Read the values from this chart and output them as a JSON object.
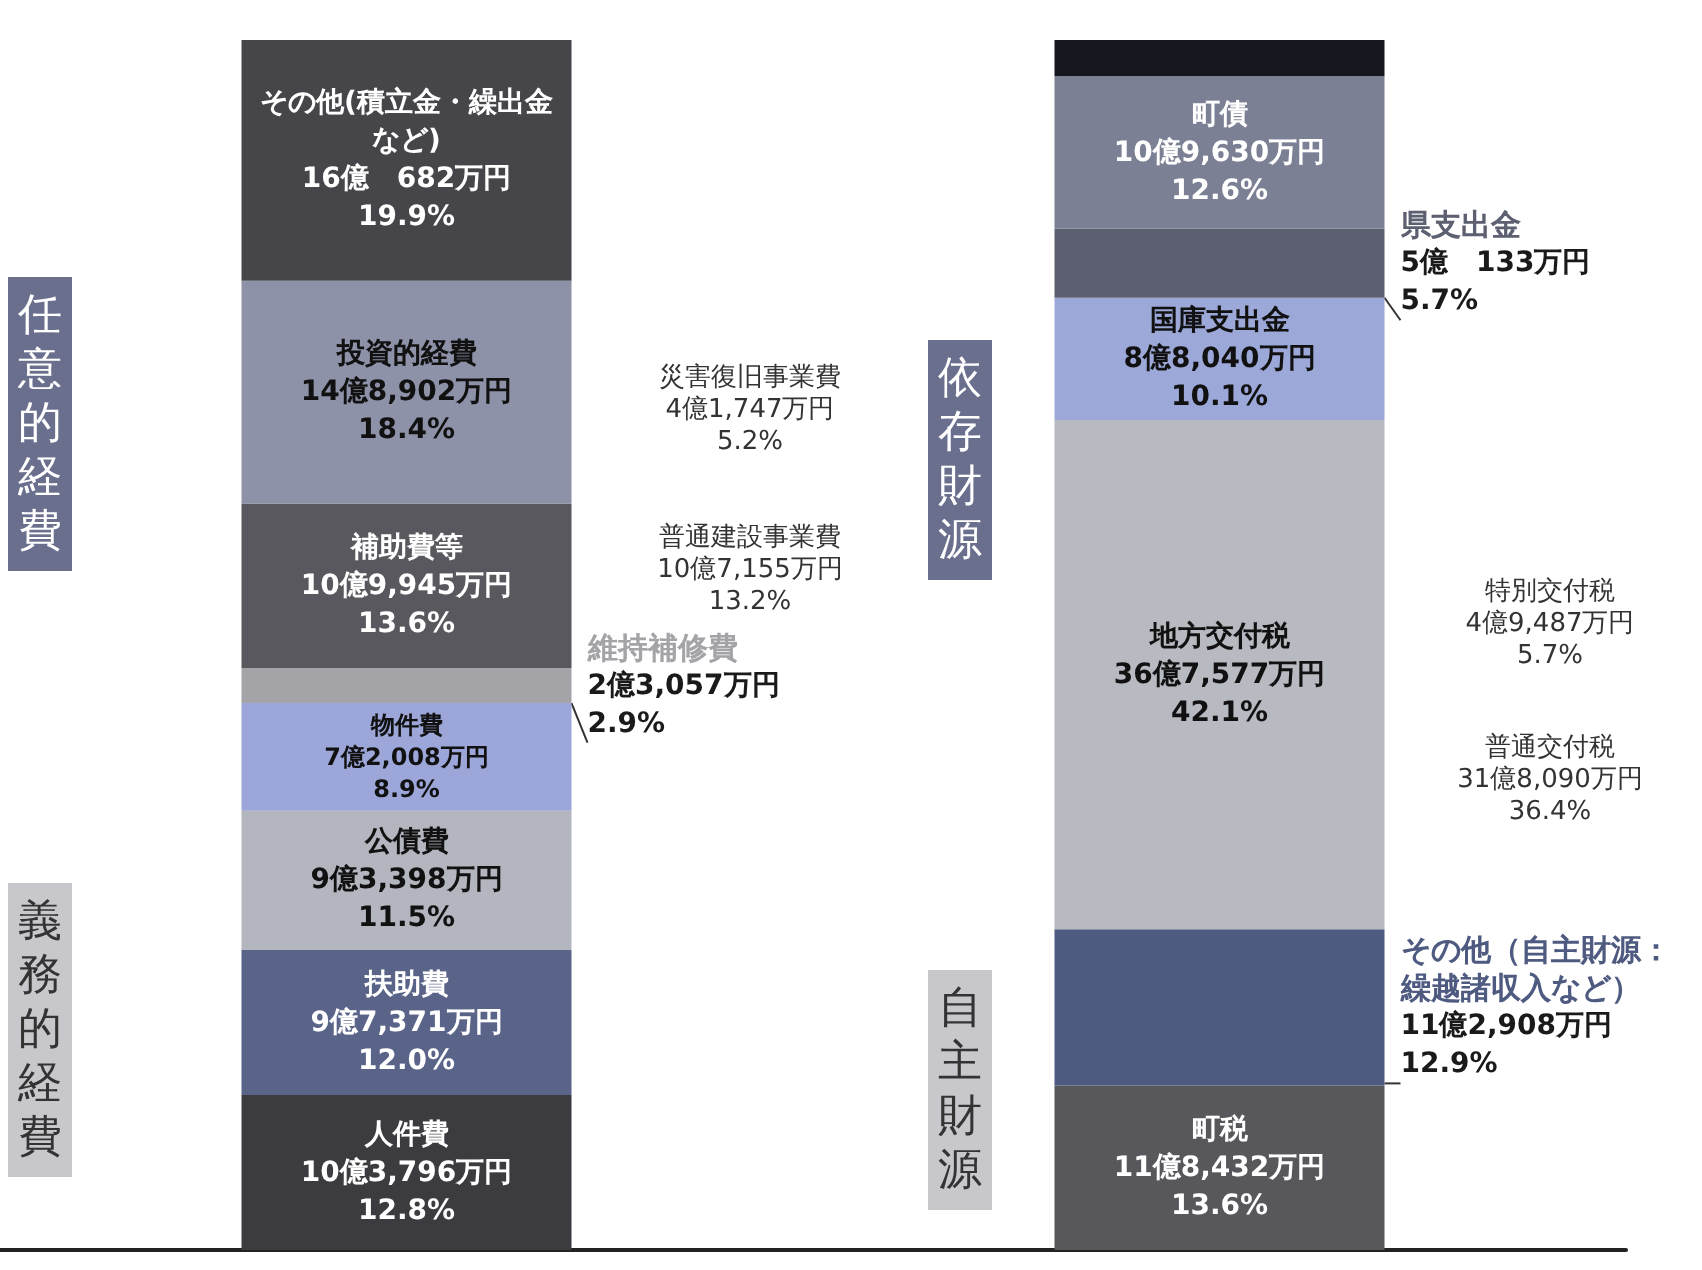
{
  "chart_data": {
    "type": "bar",
    "stacked": true,
    "categories": [
      null,
      null
    ],
    "series": [
      {
        "name": "人件費",
        "color": "#3c3c40",
        "values": [
          12.8,
          null
        ],
        "value_labels": [
          "10億3,796万円\n12.8%",
          null
        ]
      },
      {
        "name": "扶助費",
        "color": "#5a6488",
        "values": [
          12.0,
          null
        ],
        "value_labels": [
          "9億7,371万円\n12.0%",
          null
        ]
      },
      {
        "name": "公債費",
        "color": "#b3b5bf",
        "values": [
          11.5,
          null
        ],
        "value_labels": [
          "9億3,398万円\n11.5%",
          null
        ]
      },
      {
        "name": "物件費",
        "color": "#9ca6d8",
        "values": [
          8.9,
          null
        ],
        "value_labels": [
          "7億2,008万円\n8.9%",
          null
        ]
      },
      {
        "name": "維持補修費",
        "color": "#a4a4a8",
        "values": [
          2.9,
          null
        ],
        "value_labels": [
          "2億3,057万円\n2.9%",
          null
        ]
      },
      {
        "name": "補助費等",
        "color": "#58585e",
        "values": [
          13.6,
          null
        ],
        "value_labels": [
          "10億9,945万円\n13.6%",
          null
        ]
      },
      {
        "name": "投資的経費",
        "color": "#8e92a8",
        "values": [
          18.4,
          null
        ],
        "value_labels": [
          "14億8,902万円\n18.4%",
          null
        ]
      },
      {
        "name": "その他(積立金・繰出金など)",
        "color": "#46464a",
        "values": [
          19.9,
          null
        ],
        "value_labels": [
          "16億　682万円\n19.9%",
          null
        ]
      },
      {
        "name": "町税",
        "color": "#58585c",
        "values": [
          null,
          13.6
        ],
        "value_labels": [
          null,
          "11億8,432万円\n13.6%"
        ]
      },
      {
        "name": "その他（自主財源：繰越諸収入など）",
        "color": "#4e5a80",
        "values": [
          null,
          12.9
        ],
        "value_labels": [
          null,
          "11億2,908万円\n12.9%"
        ]
      },
      {
        "name": "地方交付税",
        "color": "#b8bac2",
        "values": [
          null,
          42.1
        ],
        "value_labels": [
          null,
          "36億7,577万円\n42.1%"
        ]
      },
      {
        "name": "国庫支出金",
        "color": "#9ca8d8",
        "values": [
          null,
          10.1
        ],
        "value_labels": [
          null,
          "8億8,040万円\n10.1%"
        ]
      },
      {
        "name": "県支出金",
        "color": "#5c6070",
        "values": [
          null,
          5.7
        ],
        "value_labels": [
          null,
          "5億　133万円\n5.7%"
        ]
      },
      {
        "name": "町債",
        "color": "#7c8094",
        "values": [
          null,
          12.6
        ],
        "value_labels": [
          null,
          "10億9,630万円\n12.6%"
        ]
      },
      {
        "color": "#16161e",
        "values": [
          null,
          3.0
        ]
      }
    ],
    "annotations": [
      "任意的経費",
      "義務的経費",
      "災害復旧事業費\n4億1,747万円\n5.2%",
      "普通建設事業費\n10億7,155万円\n13.2%",
      "依存財源",
      "自主財源",
      "特別交付税\n4億9,487万円\n5.7%",
      "普通交付税\n31億8,090万円\n36.4%"
    ],
    "legend": false
  }
}
